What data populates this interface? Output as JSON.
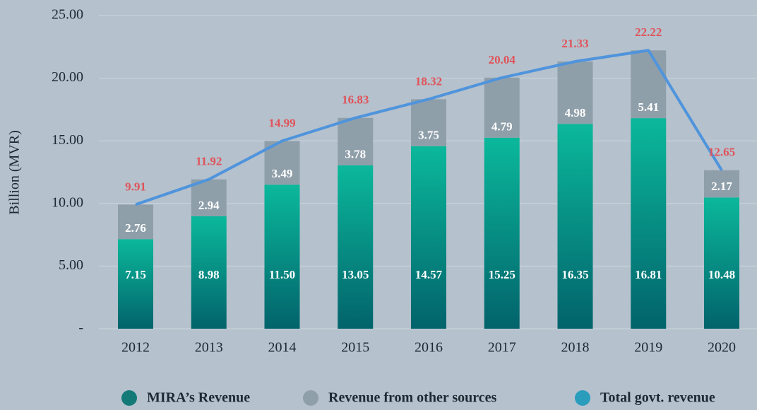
{
  "chart_data": {
    "type": "bar",
    "y_label": "Billion (MVR)",
    "categories": [
      "2012",
      "2013",
      "2014",
      "2015",
      "2016",
      "2017",
      "2018",
      "2019",
      "2020"
    ],
    "series": [
      {
        "name": "MIRA’s Revenue",
        "color": "#0bb89b",
        "values": [
          7.15,
          8.98,
          11.5,
          13.05,
          14.57,
          15.25,
          16.35,
          16.81,
          10.48
        ],
        "value_labels": [
          "7.15",
          "8.98",
          "11.50",
          "13.05",
          "14.57",
          "15.25",
          "16.35",
          "16.81",
          "10.48"
        ]
      },
      {
        "name": "Revenue from other sources",
        "color": "#8f9faa",
        "values": [
          2.76,
          2.94,
          3.49,
          3.78,
          3.75,
          4.79,
          4.98,
          5.41,
          2.17
        ],
        "value_labels": [
          "2.76",
          "2.94",
          "3.49",
          "3.78",
          "3.75",
          "4.79",
          "4.98",
          "5.41",
          "2.17"
        ]
      },
      {
        "name": "Total govt. revenue",
        "type": "line",
        "color": "#4f94dc",
        "label_color": "#e0535a",
        "values": [
          9.91,
          11.92,
          14.99,
          16.83,
          18.32,
          20.04,
          21.33,
          22.22,
          12.65
        ],
        "value_labels": [
          "9.91",
          "11.92",
          "14.99",
          "16.83",
          "18.32",
          "20.04",
          "21.33",
          "22.22",
          "12.65"
        ]
      }
    ],
    "ylim": [
      0,
      25
    ],
    "yticks": [
      {
        "value": 0,
        "label": "-"
      },
      {
        "value": 5,
        "label": "5.00"
      },
      {
        "value": 10,
        "label": "10.00"
      },
      {
        "value": 15,
        "label": "15.00"
      },
      {
        "value": 20,
        "label": "20.00"
      },
      {
        "value": 25,
        "label": "25.00"
      }
    ],
    "grid": true,
    "legend": "bottom"
  }
}
